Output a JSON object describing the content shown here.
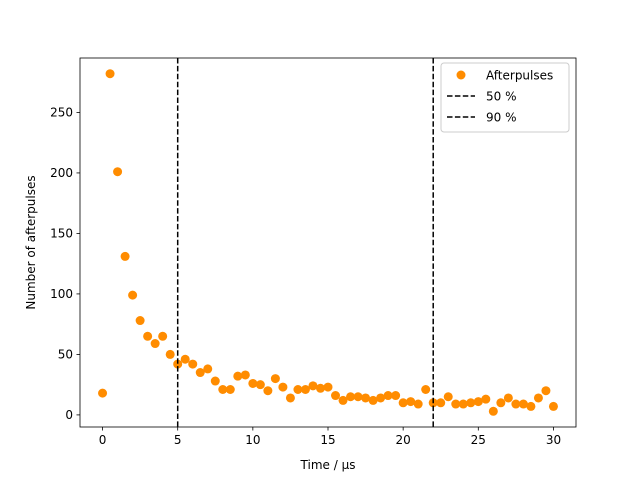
{
  "chart_data": {
    "type": "scatter",
    "title": "",
    "xlabel": "Time / μs",
    "ylabel": "Number of afterpulses",
    "xlim": [
      -1.5,
      31.5
    ],
    "ylim": [
      -10,
      295
    ],
    "xticks": [
      0,
      5,
      10,
      15,
      20,
      25,
      30
    ],
    "yticks": [
      0,
      50,
      100,
      150,
      200,
      250
    ],
    "grid": false,
    "legend_position": "top-right",
    "series": [
      {
        "name": "Afterpulses",
        "color": "#ff8c00",
        "x": [
          0,
          0.5,
          1,
          1.5,
          2,
          2.5,
          3,
          3.5,
          4,
          4.5,
          5,
          5.5,
          6,
          6.5,
          7,
          7.5,
          8,
          8.5,
          9,
          9.5,
          10,
          10.5,
          11,
          11.5,
          12,
          12.5,
          13,
          13.5,
          14,
          14.5,
          15,
          15.5,
          16,
          16.5,
          17,
          17.5,
          18,
          18.5,
          19,
          19.5,
          20,
          20.5,
          21,
          21.5,
          22,
          22.5,
          23,
          23.5,
          24,
          24.5,
          25,
          25.5,
          26,
          26.5,
          27,
          27.5,
          28,
          28.5,
          29,
          29.5,
          30
        ],
        "y": [
          18,
          282,
          201,
          131,
          99,
          78,
          65,
          59,
          65,
          50,
          42,
          46,
          42,
          35,
          38,
          28,
          21,
          21,
          32,
          33,
          26,
          25,
          20,
          30,
          23,
          14,
          21,
          21,
          24,
          22,
          23,
          16,
          12,
          15,
          15,
          14,
          12,
          14,
          16,
          16,
          10,
          11,
          9,
          21,
          10,
          10,
          15,
          9,
          9,
          10,
          11,
          13,
          3,
          10,
          14,
          9,
          9,
          7,
          14,
          20,
          7
        ]
      }
    ],
    "vlines": [
      {
        "name": "50 %",
        "x": 5.0,
        "color": "#000000",
        "style": "dashed"
      },
      {
        "name": "90 %",
        "x": 22.0,
        "color": "#000000",
        "style": "dashed"
      }
    ]
  }
}
